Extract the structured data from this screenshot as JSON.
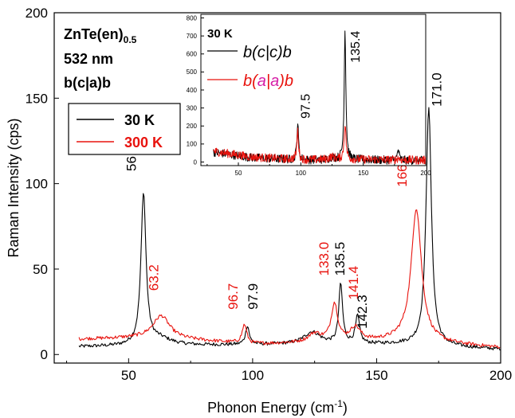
{
  "chart_data": [
    {
      "type": "line",
      "xlabel_main": "Phonon Energy (cm",
      "xlabel_sup": "-1",
      "xlabel_end": ")",
      "ylabel": "Raman Intensity (cps)",
      "xlim": [
        20,
        200
      ],
      "ylim": [
        -5,
        200
      ],
      "xticks": [
        50,
        100,
        150,
        200
      ],
      "yticks": [
        0,
        50,
        100,
        150,
        200
      ],
      "x_tick_labels": [
        "50",
        "100",
        "150",
        "200"
      ],
      "y_tick_labels": [
        "0",
        "50",
        "100",
        "150",
        "200"
      ],
      "header_lines": [
        {
          "base": "ZnTe(en)",
          "sub": "0.5"
        },
        {
          "base": "532 nm",
          "sub": ""
        },
        {
          "base": "b(c|a)b",
          "sub": ""
        }
      ],
      "legend": {
        "placement": "upper-left",
        "entries": [
          "30 K",
          "300 K"
        ]
      },
      "series": [
        {
          "name": "30 K",
          "color": "#000000",
          "baseline": [
            [
              30,
              4.5
            ],
            [
              60,
              5
            ],
            [
              120,
              6
            ],
            [
              160,
              6
            ],
            [
              200,
              3
            ]
          ],
          "peaks": [
            {
              "center": 56.0,
              "height": 89,
              "width": 1.2
            },
            {
              "center": 62.5,
              "height": 4,
              "width": 6
            },
            {
              "center": 97.9,
              "height": 11,
              "width": 0.9
            },
            {
              "center": 124,
              "height": 7,
              "width": 4
            },
            {
              "center": 135.5,
              "height": 35,
              "width": 0.9
            },
            {
              "center": 142.3,
              "height": 16,
              "width": 1.0
            },
            {
              "center": 171.0,
              "height": 140,
              "width": 1.3
            }
          ]
        },
        {
          "name": "300 K",
          "color": "#e8130e",
          "baseline": [
            [
              30,
              9
            ],
            [
              60,
              10
            ],
            [
              100,
              6
            ],
            [
              130,
              7
            ],
            [
              160,
              8
            ],
            [
              200,
              4
            ]
          ],
          "peaks": [
            {
              "center": 63.2,
              "height": 13,
              "width": 4
            },
            {
              "center": 96.7,
              "height": 11,
              "width": 1.1
            },
            {
              "center": 125,
              "height": 5,
              "width": 3
            },
            {
              "center": 133.0,
              "height": 22,
              "width": 1.6
            },
            {
              "center": 141.4,
              "height": 8,
              "width": 2.5
            },
            {
              "center": 166.0,
              "height": 78,
              "width": 2.5
            }
          ]
        }
      ],
      "annotations": [
        {
          "text": "56.0",
          "x": 53,
          "y": 115,
          "color": "#000000"
        },
        {
          "text": "63.2",
          "x": 62,
          "y": 45,
          "color": "#e8130e"
        },
        {
          "text": "96.7",
          "x": 94,
          "y": 34,
          "color": "#e8130e"
        },
        {
          "text": "97.9",
          "x": 102,
          "y": 34,
          "color": "#000000"
        },
        {
          "text": "133.0",
          "x": 130.5,
          "y": 56,
          "color": "#e8130e"
        },
        {
          "text": "135.5",
          "x": 137,
          "y": 56,
          "color": "#000000"
        },
        {
          "text": "141.4",
          "x": 142.5,
          "y": 42,
          "color": "#e8130e"
        },
        {
          "text": "142.3",
          "x": 146,
          "y": 25,
          "color": "#000000"
        },
        {
          "text": "166.0",
          "x": 162,
          "y": 108,
          "color": "#e8130e"
        },
        {
          "text": "171.0",
          "x": 176,
          "y": 155,
          "color": "#000000"
        }
      ]
    },
    {
      "type": "line",
      "xlim": [
        20,
        200
      ],
      "ylim": [
        -20,
        820
      ],
      "xticks": [
        50,
        100,
        150,
        200
      ],
      "yticks": [
        0,
        100,
        200,
        300,
        400,
        500,
        600,
        700,
        800
      ],
      "x_tick_labels": [
        "50",
        "100",
        "150",
        "200"
      ],
      "y_tick_labels": [
        "0",
        "100",
        "200",
        "300",
        "400",
        "500",
        "600",
        "700",
        "800"
      ],
      "header": "30 K",
      "legend_entries": [
        {
          "text": "b(c|c)b",
          "color": "#000000",
          "parts": [
            "b(",
            "c",
            "|",
            "c",
            ")b"
          ]
        },
        {
          "text": "b(a|a)b",
          "color": "#e8130e",
          "parts": [
            "b(",
            "a",
            "|",
            "a",
            ")b"
          ]
        }
      ],
      "series": [
        {
          "name": "b(c|c)b",
          "color": "#000000",
          "baseline": [
            [
              30,
              55
            ],
            [
              60,
              25
            ],
            [
              100,
              10
            ],
            [
              150,
              12
            ],
            [
              200,
              8
            ]
          ],
          "peaks": [
            {
              "center": 97.5,
              "height": 205,
              "width": 0.8
            },
            {
              "center": 125,
              "height": 12,
              "width": 3
            },
            {
              "center": 135.4,
              "height": 725,
              "width": 0.8
            },
            {
              "center": 178,
              "height": 60,
              "width": 0.8
            }
          ]
        },
        {
          "name": "b(a|a)b",
          "color": "#e8130e",
          "baseline": [
            [
              30,
              60
            ],
            [
              60,
              28
            ],
            [
              100,
              12
            ],
            [
              150,
              14
            ],
            [
              200,
              10
            ]
          ],
          "peaks": [
            {
              "center": 97.5,
              "height": 160,
              "width": 0.8
            },
            {
              "center": 125,
              "height": 15,
              "width": 3
            },
            {
              "center": 135.4,
              "height": 200,
              "width": 0.9
            },
            {
              "center": 178,
              "height": 12,
              "width": 1.0
            }
          ]
        }
      ],
      "annotations": [
        {
          "text": "97.5",
          "x": 107,
          "y": 310,
          "color": "#000000"
        },
        {
          "text": "135.4",
          "x": 147,
          "y": 640,
          "color": "#000000"
        }
      ]
    }
  ]
}
